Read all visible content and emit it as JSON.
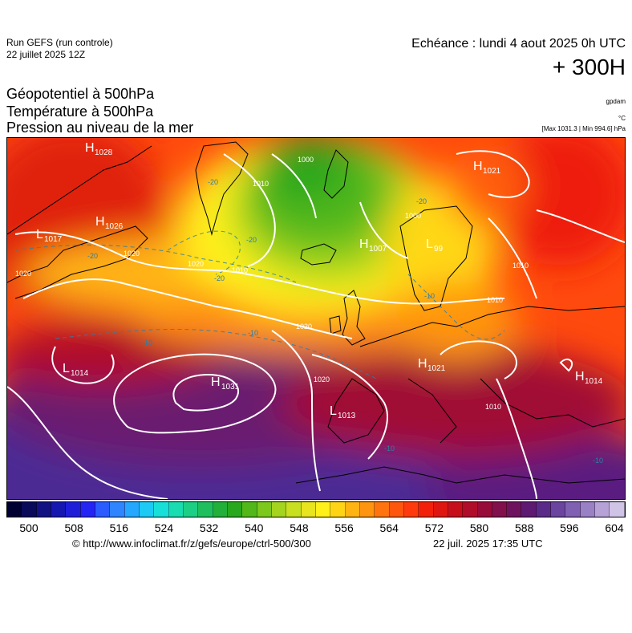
{
  "header": {
    "run_title": "Run GEFS (run controle)",
    "run_date": "22 juillet 2025 12Z",
    "echeance": "Echéance : lundi 4 aout 2025 0h UTC",
    "lead_time": "+ 300H"
  },
  "parameters": {
    "line1": "Géopotentiel à 500hPa",
    "line2": "Température à 500hPa",
    "line3": "Pression au niveau de la mer"
  },
  "units": {
    "geopotential": "gpdam",
    "temperature": "°C",
    "pressure": "[Max 1031.3 | Min 994.6] hPa"
  },
  "pressure_centers": [
    {
      "type": "H",
      "value": "1028"
    },
    {
      "type": "H",
      "value": "1026"
    },
    {
      "type": "L",
      "value": "1017"
    },
    {
      "type": "H",
      "value": "1007"
    },
    {
      "type": "L",
      "value": "99"
    },
    {
      "type": "H",
      "value": "1021"
    },
    {
      "type": "H",
      "value": "1021"
    },
    {
      "type": "L",
      "value": "1014"
    },
    {
      "type": "H",
      "value": "1031"
    },
    {
      "type": "L",
      "value": "1013"
    },
    {
      "type": "H",
      "value": "1014"
    }
  ],
  "isobar_labels": [
    "1000",
    "1010",
    "1020",
    "1000",
    "1010",
    "1020",
    "1020",
    "1020",
    "1010",
    "1010",
    "1010",
    "1020"
  ],
  "temperature_labels": [
    "-20",
    "-20",
    "-20",
    "-20",
    "-10",
    "-10",
    "-10",
    "-10",
    "-10",
    "-20"
  ],
  "colorbar": {
    "labels": [
      "500",
      "508",
      "516",
      "524",
      "532",
      "540",
      "548",
      "556",
      "564",
      "572",
      "580",
      "588",
      "596",
      "604"
    ],
    "colors": [
      "#000033",
      "#0a0a5a",
      "#121283",
      "#1616b0",
      "#1e1ed8",
      "#2424f5",
      "#2b5cff",
      "#2f85ff",
      "#24a8ff",
      "#1ccaf5",
      "#18e0d8",
      "#19dcb0",
      "#1ccf85",
      "#1fbf5e",
      "#23b03a",
      "#29a81e",
      "#52b81a",
      "#7cc81c",
      "#a4d41e",
      "#c8e020",
      "#e8e41e",
      "#fff01a",
      "#ffd417",
      "#ffb414",
      "#ff9411",
      "#ff740f",
      "#ff560d",
      "#ff3a0c",
      "#f2200b",
      "#de160f",
      "#c70f1c",
      "#b00d2a",
      "#980c3a",
      "#82104c",
      "#6e145e",
      "#5e1a72",
      "#5a2a88",
      "#6a449e",
      "#8060b2",
      "#9a80c4",
      "#b6a2d6",
      "#d0c4e6"
    ]
  },
  "footer": {
    "credit": "© http://www.infoclimat.fr/z/gefs/europe/ctrl-500/300",
    "generated": "22 juil. 2025 17:35 UTC"
  }
}
